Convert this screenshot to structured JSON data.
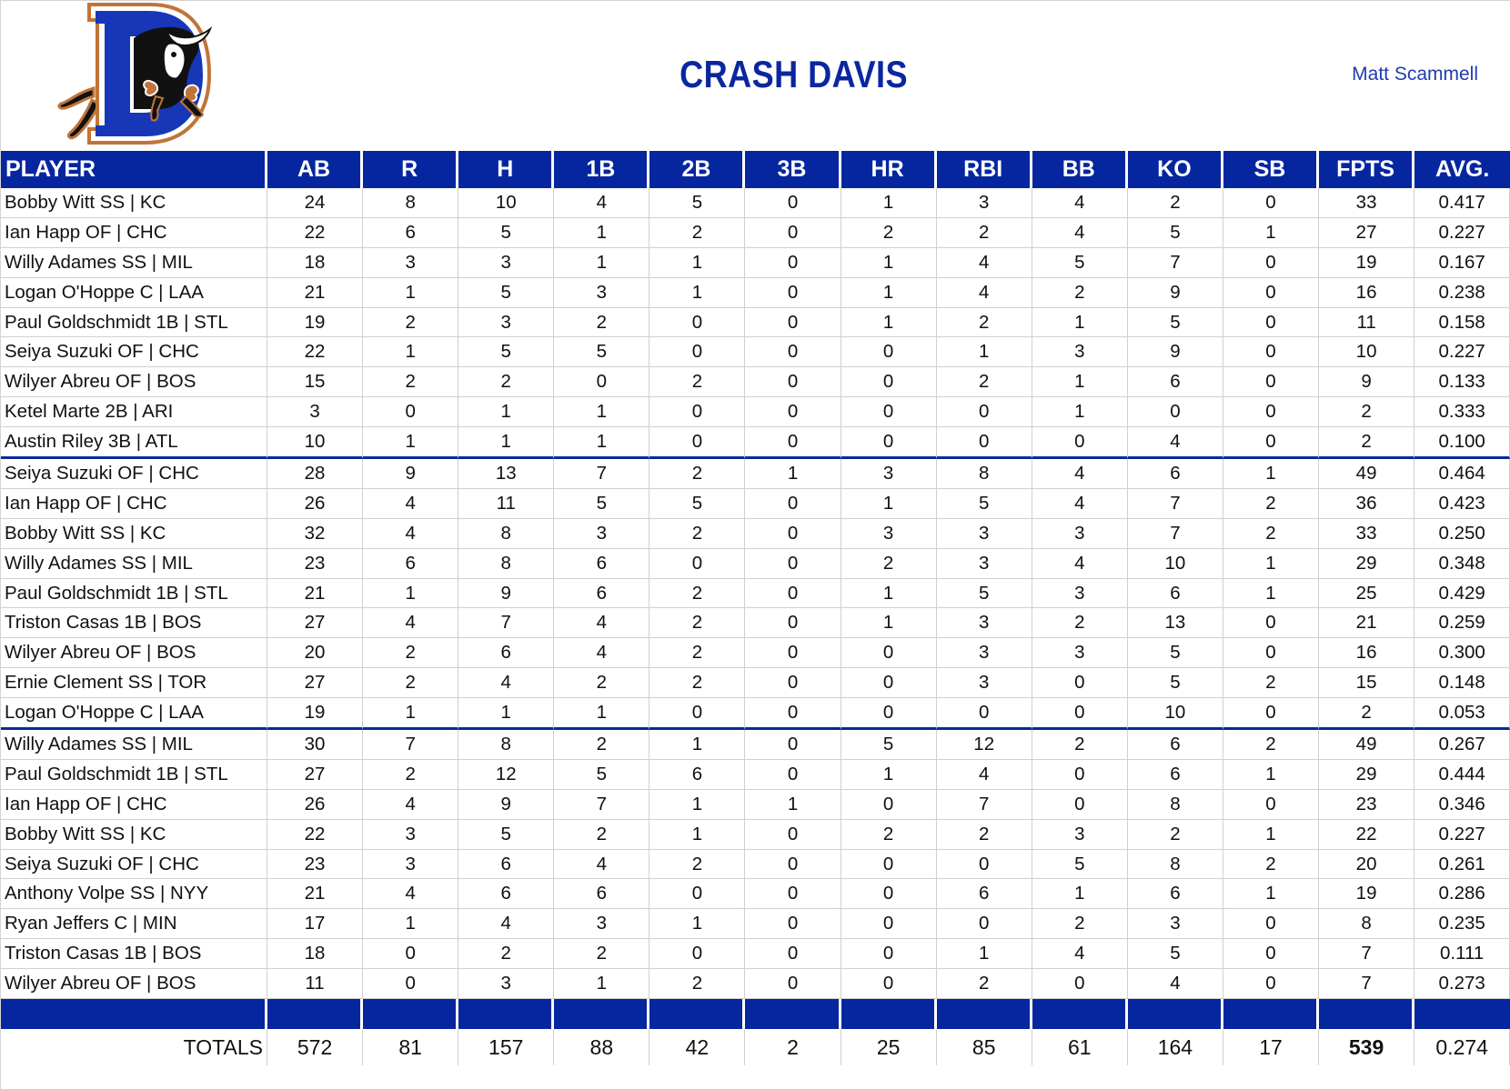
{
  "header": {
    "title": "CRASH DAVIS",
    "owner": "Matt Scammell",
    "logo": "durham-bulls-d-bull-logo"
  },
  "colors": {
    "header_blue": "#0626a0",
    "title_blue": "#0a27a0",
    "group_divider": "#0a2a96",
    "logo_blue": "#1836b8",
    "logo_orange": "#c0743a"
  },
  "table": {
    "columns": [
      "PLAYER",
      "AB",
      "R",
      "H",
      "1B",
      "2B",
      "3B",
      "HR",
      "RBI",
      "BB",
      "KO",
      "SB",
      "FPTS",
      "AVG."
    ],
    "groups": [
      {
        "rows": [
          [
            "Bobby Witt SS | KC",
            "24",
            "8",
            "10",
            "4",
            "5",
            "0",
            "1",
            "3",
            "4",
            "2",
            "0",
            "33",
            "0.417"
          ],
          [
            "Ian Happ OF | CHC",
            "22",
            "6",
            "5",
            "1",
            "2",
            "0",
            "2",
            "2",
            "4",
            "5",
            "1",
            "27",
            "0.227"
          ],
          [
            "Willy Adames SS | MIL",
            "18",
            "3",
            "3",
            "1",
            "1",
            "0",
            "1",
            "4",
            "5",
            "7",
            "0",
            "19",
            "0.167"
          ],
          [
            "Logan O'Hoppe C | LAA",
            "21",
            "1",
            "5",
            "3",
            "1",
            "0",
            "1",
            "4",
            "2",
            "9",
            "0",
            "16",
            "0.238"
          ],
          [
            "Paul Goldschmidt 1B | STL",
            "19",
            "2",
            "3",
            "2",
            "0",
            "0",
            "1",
            "2",
            "1",
            "5",
            "0",
            "11",
            "0.158"
          ],
          [
            "Seiya Suzuki OF | CHC",
            "22",
            "1",
            "5",
            "5",
            "0",
            "0",
            "0",
            "1",
            "3",
            "9",
            "0",
            "10",
            "0.227"
          ],
          [
            "Wilyer Abreu OF | BOS",
            "15",
            "2",
            "2",
            "0",
            "2",
            "0",
            "0",
            "2",
            "1",
            "6",
            "0",
            "9",
            "0.133"
          ],
          [
            "Ketel Marte 2B | ARI",
            "3",
            "0",
            "1",
            "1",
            "0",
            "0",
            "0",
            "0",
            "1",
            "0",
            "0",
            "2",
            "0.333"
          ],
          [
            "Austin Riley 3B | ATL",
            "10",
            "1",
            "1",
            "1",
            "0",
            "0",
            "0",
            "0",
            "0",
            "4",
            "0",
            "2",
            "0.100"
          ]
        ]
      },
      {
        "rows": [
          [
            "Seiya Suzuki OF | CHC",
            "28",
            "9",
            "13",
            "7",
            "2",
            "1",
            "3",
            "8",
            "4",
            "6",
            "1",
            "49",
            "0.464"
          ],
          [
            "Ian Happ OF | CHC",
            "26",
            "4",
            "11",
            "5",
            "5",
            "0",
            "1",
            "5",
            "4",
            "7",
            "2",
            "36",
            "0.423"
          ],
          [
            "Bobby Witt SS | KC",
            "32",
            "4",
            "8",
            "3",
            "2",
            "0",
            "3",
            "3",
            "3",
            "7",
            "2",
            "33",
            "0.250"
          ],
          [
            "Willy Adames SS | MIL",
            "23",
            "6",
            "8",
            "6",
            "0",
            "0",
            "2",
            "3",
            "4",
            "10",
            "1",
            "29",
            "0.348"
          ],
          [
            "Paul Goldschmidt 1B | STL",
            "21",
            "1",
            "9",
            "6",
            "2",
            "0",
            "1",
            "5",
            "3",
            "6",
            "1",
            "25",
            "0.429"
          ],
          [
            "Triston Casas 1B | BOS",
            "27",
            "4",
            "7",
            "4",
            "2",
            "0",
            "1",
            "3",
            "2",
            "13",
            "0",
            "21",
            "0.259"
          ],
          [
            "Wilyer Abreu OF | BOS",
            "20",
            "2",
            "6",
            "4",
            "2",
            "0",
            "0",
            "3",
            "3",
            "5",
            "0",
            "16",
            "0.300"
          ],
          [
            "Ernie Clement SS | TOR",
            "27",
            "2",
            "4",
            "2",
            "2",
            "0",
            "0",
            "3",
            "0",
            "5",
            "2",
            "15",
            "0.148"
          ],
          [
            "Logan O'Hoppe C | LAA",
            "19",
            "1",
            "1",
            "1",
            "0",
            "0",
            "0",
            "0",
            "0",
            "10",
            "0",
            "2",
            "0.053"
          ]
        ]
      },
      {
        "rows": [
          [
            "Willy Adames SS | MIL",
            "30",
            "7",
            "8",
            "2",
            "1",
            "0",
            "5",
            "12",
            "2",
            "6",
            "2",
            "49",
            "0.267"
          ],
          [
            "Paul Goldschmidt 1B | STL",
            "27",
            "2",
            "12",
            "5",
            "6",
            "0",
            "1",
            "4",
            "0",
            "6",
            "1",
            "29",
            "0.444"
          ],
          [
            "Ian Happ OF | CHC",
            "26",
            "4",
            "9",
            "7",
            "1",
            "1",
            "0",
            "7",
            "0",
            "8",
            "0",
            "23",
            "0.346"
          ],
          [
            "Bobby Witt SS | KC",
            "22",
            "3",
            "5",
            "2",
            "1",
            "0",
            "2",
            "2",
            "3",
            "2",
            "1",
            "22",
            "0.227"
          ],
          [
            "Seiya Suzuki OF | CHC",
            "23",
            "3",
            "6",
            "4",
            "2",
            "0",
            "0",
            "0",
            "5",
            "8",
            "2",
            "20",
            "0.261"
          ],
          [
            "Anthony Volpe SS | NYY",
            "21",
            "4",
            "6",
            "6",
            "0",
            "0",
            "0",
            "6",
            "1",
            "6",
            "1",
            "19",
            "0.286"
          ],
          [
            "Ryan Jeffers C | MIN",
            "17",
            "1",
            "4",
            "3",
            "1",
            "0",
            "0",
            "0",
            "2",
            "3",
            "0",
            "8",
            "0.235"
          ],
          [
            "Triston Casas 1B | BOS",
            "18",
            "0",
            "2",
            "2",
            "0",
            "0",
            "0",
            "1",
            "4",
            "5",
            "0",
            "7",
            "0.111"
          ],
          [
            "Wilyer Abreu OF | BOS",
            "11",
            "0",
            "3",
            "1",
            "2",
            "0",
            "0",
            "2",
            "0",
            "4",
            "0",
            "7",
            "0.273"
          ]
        ]
      }
    ],
    "totals": {
      "label": "TOTALS",
      "values": [
        "572",
        "81",
        "157",
        "88",
        "42",
        "2",
        "25",
        "85",
        "61",
        "164",
        "17",
        "539",
        "0.274"
      ]
    }
  }
}
